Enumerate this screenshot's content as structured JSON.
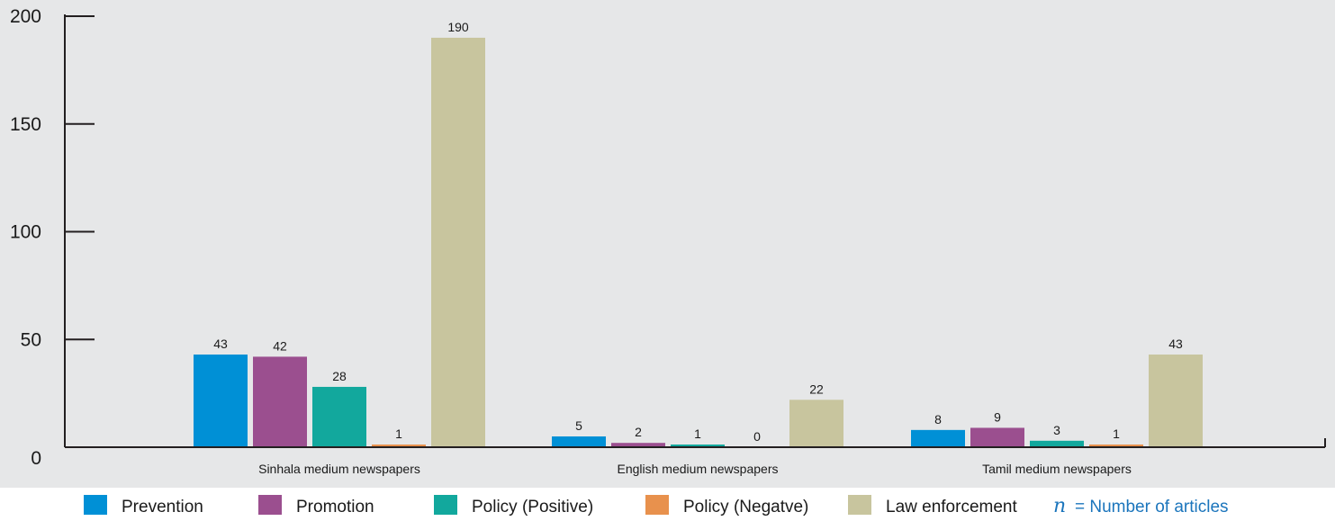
{
  "chart_data": {
    "type": "bar",
    "categories": [
      "Sinhala medium newspapers",
      "English medium newspapers",
      "Tamil medium newspapers"
    ],
    "series": [
      {
        "name": "Prevention",
        "color": "#0090d6",
        "values": [
          43,
          5,
          8
        ]
      },
      {
        "name": "Promotion",
        "color": "#9b4f8f",
        "values": [
          42,
          2,
          9
        ]
      },
      {
        "name": "Policy (Positive)",
        "color": "#12a89d",
        "values": [
          28,
          1,
          3
        ]
      },
      {
        "name": "Policy (Negatve)",
        "color": "#e8914d",
        "values": [
          1,
          0,
          1
        ]
      },
      {
        "name": "Law enforcement",
        "color": "#c8c59e",
        "values": [
          190,
          22,
          43
        ]
      }
    ],
    "yticks": [
      0,
      50,
      100,
      150,
      200
    ],
    "ylim": [
      0,
      200
    ],
    "grid": false,
    "legend_position": "bottom",
    "note": {
      "symbol": "n",
      "text": "= Number of articles"
    }
  },
  "colors": {
    "plot_background": "#e6e7e8",
    "axis": "#231f20",
    "note": "#1b75bc"
  }
}
